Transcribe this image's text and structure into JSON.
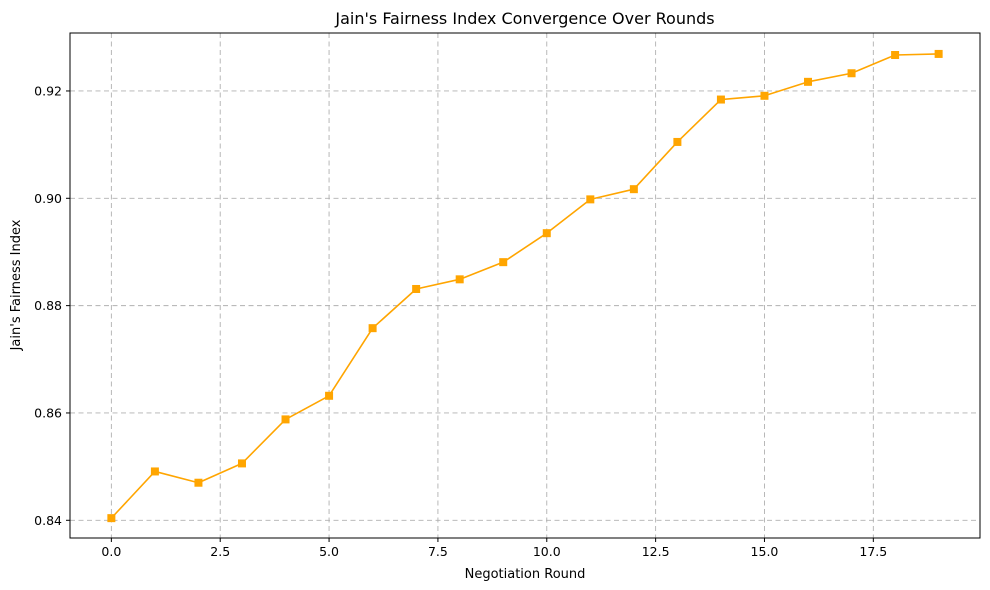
{
  "chart_data": {
    "type": "line",
    "title": "Jain's Fairness Index Convergence Over Rounds",
    "xlabel": "Negotiation Round",
    "ylabel": "Jain's Fairness Index",
    "xlim": [
      -0.95,
      19.95
    ],
    "ylim": [
      0.8367,
      0.9308
    ],
    "xticks": [
      0.0,
      2.5,
      5.0,
      7.5,
      10.0,
      12.5,
      15.0,
      17.5
    ],
    "xtick_labels": [
      "0.0",
      "2.5",
      "5.0",
      "7.5",
      "10.0",
      "12.5",
      "15.0",
      "17.5"
    ],
    "yticks": [
      0.84,
      0.86,
      0.88,
      0.9,
      0.92
    ],
    "ytick_labels": [
      "0.84",
      "0.86",
      "0.88",
      "0.90",
      "0.92"
    ],
    "grid": true,
    "line_color": "#ffa500",
    "marker": "square",
    "series": [
      {
        "x": [
          0,
          1,
          2,
          3,
          4,
          5,
          6,
          7,
          8,
          9,
          10,
          11,
          12,
          13,
          14,
          15,
          16,
          17,
          18,
          19
        ],
        "values": [
          0.8404,
          0.8491,
          0.847,
          0.8506,
          0.8588,
          0.8632,
          0.8758,
          0.8831,
          0.8849,
          0.8881,
          0.8935,
          0.8998,
          0.9017,
          0.9105,
          0.9184,
          0.9191,
          0.9217,
          0.9233,
          0.9267,
          0.9269
        ]
      }
    ]
  }
}
